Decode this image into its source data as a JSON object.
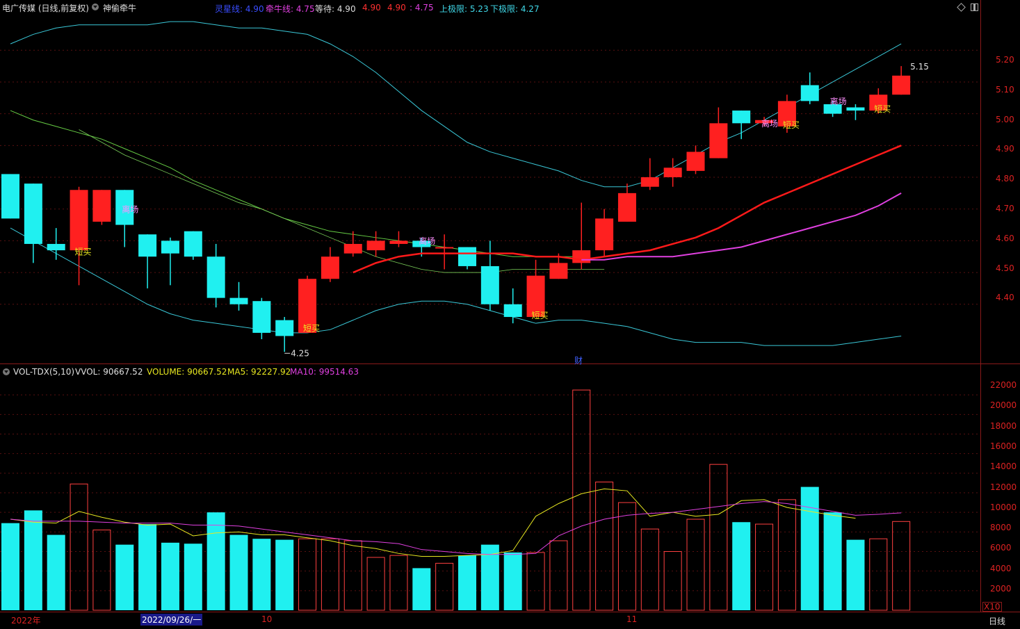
{
  "header": {
    "title": "电广传媒 (日线,前复权)",
    "indicator": "神偷牵牛",
    "legend": [
      {
        "label": "灵星线:",
        "value": "4.90",
        "color": "#3a4dff"
      },
      {
        "label": "牵牛线:",
        "value": "4.75",
        "color": "#e040e0"
      },
      {
        "label": "等待:",
        "value": "4.90",
        "color": "#dddddd"
      },
      {
        "label": "",
        "value": "4.90",
        "color": "#ff3030"
      },
      {
        "label": "",
        "value": "4.90",
        "color": "#ff3030"
      },
      {
        "label": ":",
        "value": "4.75",
        "color": "#e040e0"
      },
      {
        "label": "上极限:",
        "value": "5.23",
        "color": "#40d8e8"
      },
      {
        "label": "下极限:",
        "value": "4.27",
        "color": "#40d8e8"
      }
    ]
  },
  "price_axis": [
    "5.20",
    "5.10",
    "5.00",
    "4.90",
    "4.80",
    "4.70",
    "4.60",
    "4.50",
    "4.40"
  ],
  "volume_axis": [
    "22000",
    "20000",
    "18000",
    "16000",
    "14000",
    "12000",
    "10000",
    "8000",
    "6000",
    "4000",
    "2000"
  ],
  "volume_header": {
    "name": "VOL-TDX(5,10)",
    "vvol": "VVOL: 90667.52",
    "volume": "VOLUME: 90667.52",
    "ma5": "MA5: 92227.92",
    "ma10": "MA10: 99514.63"
  },
  "volume_unit": "X10",
  "period": "日线",
  "x_axis": {
    "year": "2022年",
    "date_cursor": "2022/09/26/一",
    "month_10": "10",
    "month_11": "11"
  },
  "annotations": {
    "low": "4.25",
    "high": "5.15",
    "finance": "财",
    "buy": "短买",
    "exit": "离场"
  },
  "chart_data": {
    "type": "candlestick",
    "y_range_price": [
      4.22,
      5.31
    ],
    "y_range_volume": [
      0,
      24000
    ],
    "candles": [
      {
        "o": 4.81,
        "c": 4.67,
        "h": 4.81,
        "l": 4.67,
        "v": 8900
      },
      {
        "o": 4.78,
        "c": 4.59,
        "h": 4.78,
        "l": 4.53,
        "v": 10200
      },
      {
        "o": 4.59,
        "c": 4.57,
        "h": 4.64,
        "l": 4.54,
        "v": 7700
      },
      {
        "o": 4.57,
        "c": 4.76,
        "h": 4.77,
        "l": 4.46,
        "v": 12900
      },
      {
        "o": 4.66,
        "c": 4.76,
        "h": 4.76,
        "l": 4.65,
        "v": 8200
      },
      {
        "o": 4.76,
        "c": 4.65,
        "h": 4.76,
        "l": 4.58,
        "v": 6700
      },
      {
        "o": 4.62,
        "c": 4.55,
        "h": 4.62,
        "l": 4.45,
        "v": 8800
      },
      {
        "o": 4.6,
        "c": 4.56,
        "h": 4.61,
        "l": 4.46,
        "v": 6900
      },
      {
        "o": 4.63,
        "c": 4.55,
        "h": 4.63,
        "l": 4.54,
        "v": 6800
      },
      {
        "o": 4.55,
        "c": 4.42,
        "h": 4.59,
        "l": 4.39,
        "v": 10000
      },
      {
        "o": 4.42,
        "c": 4.4,
        "h": 4.47,
        "l": 4.38,
        "v": 7700
      },
      {
        "o": 4.41,
        "c": 4.31,
        "h": 4.42,
        "l": 4.29,
        "v": 7300
      },
      {
        "o": 4.35,
        "c": 4.3,
        "h": 4.36,
        "l": 4.25,
        "v": 7200
      },
      {
        "o": 4.31,
        "c": 4.48,
        "h": 4.49,
        "l": 4.31,
        "v": 7300
      },
      {
        "o": 4.48,
        "c": 4.55,
        "h": 4.58,
        "l": 4.47,
        "v": 7300
      },
      {
        "o": 4.56,
        "c": 4.59,
        "h": 4.63,
        "l": 4.55,
        "v": 7100
      },
      {
        "o": 4.57,
        "c": 4.6,
        "h": 4.63,
        "l": 4.55,
        "v": 5400
      },
      {
        "o": 4.59,
        "c": 4.6,
        "h": 4.63,
        "l": 4.58,
        "v": 5600
      },
      {
        "o": 4.6,
        "c": 4.58,
        "h": 4.61,
        "l": 4.55,
        "v": 4300
      },
      {
        "o": 4.58,
        "c": 4.58,
        "h": 4.62,
        "l": 4.51,
        "v": 4800
      },
      {
        "o": 4.58,
        "c": 4.52,
        "h": 4.58,
        "l": 4.51,
        "v": 5600
      },
      {
        "o": 4.52,
        "c": 4.4,
        "h": 4.6,
        "l": 4.38,
        "v": 6700
      },
      {
        "o": 4.4,
        "c": 4.36,
        "h": 4.45,
        "l": 4.34,
        "v": 5900
      },
      {
        "o": 4.36,
        "c": 4.49,
        "h": 4.54,
        "l": 4.36,
        "v": 5900
      },
      {
        "o": 4.48,
        "c": 4.53,
        "h": 4.56,
        "l": 4.48,
        "v": 7100
      },
      {
        "o": 4.53,
        "c": 4.57,
        "h": 4.72,
        "l": 4.51,
        "v": 22500
      },
      {
        "o": 4.57,
        "c": 4.67,
        "h": 4.7,
        "l": 4.55,
        "v": 13100
      },
      {
        "o": 4.66,
        "c": 4.75,
        "h": 4.78,
        "l": 4.66,
        "v": 11000
      },
      {
        "o": 4.77,
        "c": 4.8,
        "h": 4.86,
        "l": 4.76,
        "v": 8300
      },
      {
        "o": 4.8,
        "c": 4.83,
        "h": 4.86,
        "l": 4.77,
        "v": 6000
      },
      {
        "o": 4.82,
        "c": 4.88,
        "h": 4.9,
        "l": 4.81,
        "v": 9300
      },
      {
        "o": 4.86,
        "c": 4.97,
        "h": 5.02,
        "l": 4.86,
        "v": 14900
      },
      {
        "o": 5.01,
        "c": 4.97,
        "h": 5.01,
        "l": 4.92,
        "v": 9000
      },
      {
        "o": 4.97,
        "c": 4.98,
        "h": 4.99,
        "l": 4.96,
        "v": 8800
      },
      {
        "o": 4.96,
        "c": 5.04,
        "h": 5.06,
        "l": 4.94,
        "v": 11300
      },
      {
        "o": 5.09,
        "c": 5.04,
        "h": 5.13,
        "l": 5.03,
        "v": 12600
      },
      {
        "o": 5.03,
        "c": 5.0,
        "h": 5.04,
        "l": 4.99,
        "v": 10000
      },
      {
        "o": 5.02,
        "c": 5.01,
        "h": 5.03,
        "l": 4.98,
        "v": 7200
      },
      {
        "o": 5.01,
        "c": 5.06,
        "h": 5.08,
        "l": 5.0,
        "v": 7300
      },
      {
        "o": 5.06,
        "c": 5.12,
        "h": 5.15,
        "l": 5.06,
        "v": 9067
      }
    ],
    "upper_band": [
      5.22,
      5.25,
      5.27,
      5.28,
      5.28,
      5.28,
      5.28,
      5.29,
      5.29,
      5.28,
      5.27,
      5.27,
      5.26,
      5.25,
      5.22,
      5.18,
      5.13,
      5.07,
      5.01,
      4.96,
      4.91,
      4.88,
      4.86,
      4.84,
      4.82,
      4.79,
      4.77,
      4.77,
      4.79,
      4.83,
      4.87,
      4.91,
      4.94,
      4.98,
      5.02,
      5.06,
      5.1,
      5.14,
      5.18,
      5.22
    ],
    "middle_band": [
      5.01,
      4.98,
      4.96,
      4.94,
      4.92,
      4.89,
      4.86,
      4.83,
      4.79,
      4.76,
      4.73,
      4.7,
      4.67,
      4.65,
      4.63,
      4.62,
      4.61,
      4.6,
      4.59,
      4.58,
      4.57,
      4.56,
      4.55,
      4.55,
      4.55,
      4.55
    ],
    "lower_band": [
      4.64,
      4.6,
      4.56,
      4.52,
      4.48,
      4.44,
      4.4,
      4.37,
      4.35,
      4.34,
      4.33,
      4.32,
      4.31,
      4.31,
      4.32,
      4.35,
      4.38,
      4.4,
      4.41,
      4.41,
      4.4,
      4.38,
      4.36,
      4.34,
      4.35,
      4.35,
      4.34,
      4.33,
      4.31,
      4.29,
      4.28,
      4.28,
      4.28,
      4.27,
      4.27,
      4.27,
      4.27,
      4.28,
      4.29,
      4.3
    ],
    "green_line": [
      4.95,
      4.91,
      4.87,
      4.84,
      4.81,
      4.78,
      4.75,
      4.72,
      4.7,
      4.67,
      4.64,
      4.61,
      4.58,
      4.55,
      4.53,
      4.51,
      4.5,
      4.5,
      4.5,
      4.51,
      4.51,
      4.51,
      4.51,
      4.51
    ],
    "ma_red": [
      4.5,
      4.53,
      4.55,
      4.56,
      4.56,
      4.56,
      4.56,
      4.56,
      4.55,
      4.55,
      4.54,
      4.55,
      4.56,
      4.57,
      4.59,
      4.61,
      4.64,
      4.68,
      4.72,
      4.75,
      4.78,
      4.81,
      4.84,
      4.87,
      4.9
    ],
    "ma_magenta": [
      4.54,
      4.54,
      4.55,
      4.55,
      4.55,
      4.56,
      4.57,
      4.58,
      4.6,
      4.62,
      4.64,
      4.66,
      4.68,
      4.71,
      4.75
    ],
    "vol_ma5": [
      9300,
      9000,
      8900,
      10100,
      9500,
      9000,
      8700,
      8800,
      7600,
      7900,
      8000,
      7700,
      7700,
      7400,
      7100,
      6600,
      6300,
      5800,
      5500,
      5500,
      5600,
      5700,
      6100,
      9600,
      10900,
      11900,
      12400,
      12200,
      9600,
      10000,
      9600,
      9800,
      11200,
      11300,
      10500,
      10100,
      9700,
      9400
    ],
    "vol_ma10": [
      9300,
      9100,
      9100,
      9100,
      9000,
      8900,
      8900,
      8900,
      8700,
      8700,
      8600,
      8300,
      8000,
      7700,
      7400,
      7100,
      7000,
      6800,
      6200,
      6000,
      5800,
      5700,
      5700,
      5800,
      7600,
      8600,
      9300,
      9700,
      9900,
      10000,
      10300,
      10600,
      10900,
      11100,
      10900,
      10500,
      10100,
      9700,
      9800,
      9950
    ]
  }
}
